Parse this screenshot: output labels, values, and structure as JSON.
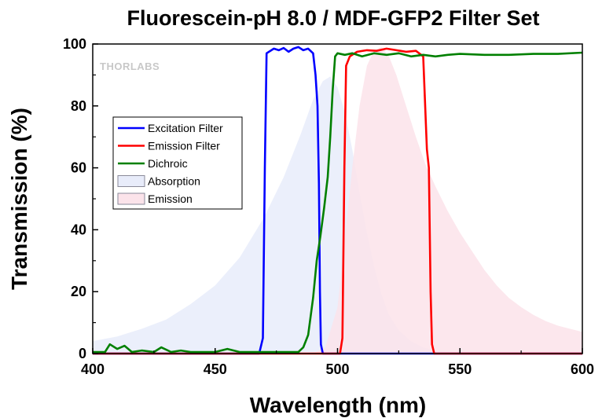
{
  "chart_data": {
    "type": "line",
    "title": "Fluorescein-pH 8.0 / MDF-GFP2 Filter Set",
    "xlabel": "Wavelength (nm)",
    "ylabel": "Transmission (%)",
    "xlim": [
      400,
      600
    ],
    "ylim": [
      0,
      100
    ],
    "xticks": [
      400,
      450,
      500,
      550,
      600
    ],
    "yticks": [
      0,
      20,
      40,
      60,
      80,
      100
    ],
    "grid": false,
    "legend_position": "upper-left",
    "logo": "THORLABS",
    "series": [
      {
        "name": "Excitation Filter",
        "kind": "line",
        "color": "#0000ff",
        "points": [
          [
            400,
            0
          ],
          [
            468,
            0
          ],
          [
            469.5,
            5
          ],
          [
            470.3,
            60
          ],
          [
            471,
            97
          ],
          [
            474,
            98.5
          ],
          [
            476,
            98
          ],
          [
            478,
            98.7
          ],
          [
            480,
            97.5
          ],
          [
            482,
            98.5
          ],
          [
            484,
            99
          ],
          [
            486,
            98
          ],
          [
            488,
            98.5
          ],
          [
            490,
            97
          ],
          [
            491,
            90
          ],
          [
            491.8,
            80
          ],
          [
            492.4,
            55
          ],
          [
            492.8,
            20
          ],
          [
            493.2,
            3
          ],
          [
            494,
            0
          ],
          [
            600,
            0
          ]
        ]
      },
      {
        "name": "Emission Filter",
        "kind": "line",
        "color": "#ff0000",
        "points": [
          [
            400,
            0
          ],
          [
            501,
            0
          ],
          [
            502,
            5
          ],
          [
            502.8,
            60
          ],
          [
            503.5,
            93
          ],
          [
            505,
            96
          ],
          [
            508,
            97.5
          ],
          [
            512,
            98
          ],
          [
            516,
            97.8
          ],
          [
            520,
            98.5
          ],
          [
            524,
            98
          ],
          [
            528,
            97.5
          ],
          [
            532,
            97.8
          ],
          [
            535,
            96
          ],
          [
            535.8,
            80
          ],
          [
            536.5,
            66
          ],
          [
            537.3,
            60
          ],
          [
            538,
            20
          ],
          [
            538.6,
            3
          ],
          [
            539.5,
            0
          ],
          [
            600,
            0
          ]
        ]
      },
      {
        "name": "Dichroic",
        "kind": "line",
        "color": "#008000",
        "points": [
          [
            400,
            0.5
          ],
          [
            405,
            0.5
          ],
          [
            407,
            3
          ],
          [
            410,
            1.5
          ],
          [
            413,
            2.5
          ],
          [
            416,
            0.5
          ],
          [
            420,
            1
          ],
          [
            425,
            0.5
          ],
          [
            428,
            2
          ],
          [
            432,
            0.5
          ],
          [
            436,
            1
          ],
          [
            440,
            0.5
          ],
          [
            445,
            0.5
          ],
          [
            450,
            0.5
          ],
          [
            455,
            1.5
          ],
          [
            460,
            0.5
          ],
          [
            465,
            0.5
          ],
          [
            470,
            0.5
          ],
          [
            476,
            0.5
          ],
          [
            480,
            0.5
          ],
          [
            484,
            0.5
          ],
          [
            486,
            2
          ],
          [
            488,
            6
          ],
          [
            490,
            18
          ],
          [
            491.5,
            30
          ],
          [
            493,
            38
          ],
          [
            494.5,
            47
          ],
          [
            496,
            57
          ],
          [
            497,
            70
          ],
          [
            498,
            85
          ],
          [
            499,
            96
          ],
          [
            500,
            97
          ],
          [
            503,
            96.5
          ],
          [
            506,
            97
          ],
          [
            510,
            96
          ],
          [
            515,
            97
          ],
          [
            520,
            96.5
          ],
          [
            525,
            97
          ],
          [
            530,
            96
          ],
          [
            535,
            96.5
          ],
          [
            540,
            96
          ],
          [
            545,
            96.5
          ],
          [
            550,
            96.8
          ],
          [
            560,
            96.5
          ],
          [
            570,
            96.5
          ],
          [
            580,
            96.8
          ],
          [
            590,
            96.8
          ],
          [
            600,
            97.2
          ]
        ]
      },
      {
        "name": "Absorption",
        "kind": "area",
        "color": "#e8ecfa",
        "points": [
          [
            400,
            4
          ],
          [
            410,
            5.5
          ],
          [
            420,
            8
          ],
          [
            430,
            11
          ],
          [
            440,
            16
          ],
          [
            450,
            22
          ],
          [
            460,
            31
          ],
          [
            470,
            44
          ],
          [
            478,
            57
          ],
          [
            485,
            71
          ],
          [
            490,
            82
          ],
          [
            494,
            88
          ],
          [
            497,
            89.5
          ],
          [
            500,
            86
          ],
          [
            503,
            78
          ],
          [
            506,
            66
          ],
          [
            509,
            52
          ],
          [
            512,
            39
          ],
          [
            515,
            28
          ],
          [
            518,
            19
          ],
          [
            521,
            12.5
          ],
          [
            525,
            7.5
          ],
          [
            530,
            4
          ],
          [
            535,
            2
          ],
          [
            540,
            1
          ],
          [
            545,
            0.5
          ],
          [
            550,
            0
          ]
        ]
      },
      {
        "name": "Emission",
        "kind": "area",
        "color": "#fbe3ea",
        "points": [
          [
            490,
            0
          ],
          [
            495,
            2
          ],
          [
            500,
            15
          ],
          [
            503,
            37
          ],
          [
            506,
            60
          ],
          [
            509,
            80
          ],
          [
            512,
            93
          ],
          [
            515,
            98
          ],
          [
            518,
            99
          ],
          [
            521,
            96
          ],
          [
            524,
            90
          ],
          [
            528,
            80
          ],
          [
            532,
            70
          ],
          [
            536,
            61
          ],
          [
            540,
            54
          ],
          [
            545,
            46
          ],
          [
            550,
            39
          ],
          [
            555,
            33
          ],
          [
            560,
            27
          ],
          [
            565,
            22
          ],
          [
            570,
            18
          ],
          [
            575,
            15
          ],
          [
            580,
            12.5
          ],
          [
            585,
            10.5
          ],
          [
            590,
            9
          ],
          [
            595,
            8
          ],
          [
            600,
            7
          ]
        ]
      }
    ]
  }
}
